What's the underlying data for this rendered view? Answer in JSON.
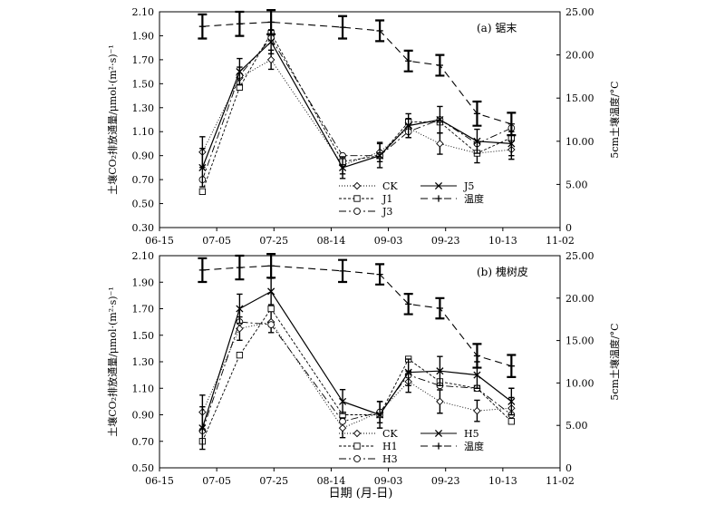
{
  "figure": {
    "ylabel_left": "土壤CO₂排放通量/μmol·(m²·s)⁻¹",
    "ylabel_right": "5cm土壤温度/°C",
    "xlabel": "日期 (月-日)"
  },
  "x_ticks": [
    "06-15",
    "07-05",
    "07-25",
    "08-14",
    "09-03",
    "09-23",
    "10-13",
    "11-02"
  ],
  "x_tick_days": [
    0,
    20,
    40,
    60,
    80,
    100,
    120,
    140
  ],
  "left_ticks": [
    "0.30",
    "0.50",
    "0.70",
    "0.90",
    "1.10",
    "1.30",
    "1.50",
    "1.70",
    "1.90",
    "2.10"
  ],
  "right_ticks": [
    "0",
    "5.00",
    "10.00",
    "15.00",
    "20.00",
    "25.00"
  ],
  "chart_data": [
    {
      "type": "line",
      "title": "(a) 锯末",
      "x": [
        "06-30",
        "07-13",
        "07-24",
        "08-18",
        "08-31",
        "09-10",
        "09-21",
        "10-04",
        "10-16"
      ],
      "x_days": [
        15,
        28,
        39,
        64,
        77,
        87,
        98,
        111,
        123
      ],
      "ylim": [
        0.3,
        2.1
      ],
      "y2lim": [
        0,
        25
      ],
      "series": [
        {
          "name": "CK",
          "axis": "left",
          "marker": "diamond",
          "dash": "1,2",
          "values": [
            0.93,
            1.55,
            1.7,
            0.82,
            0.93,
            1.13,
            1.0,
            0.92,
            0.95
          ]
        },
        {
          "name": "J1",
          "axis": "left",
          "marker": "square",
          "dash": "3,2",
          "values": [
            0.6,
            1.47,
            1.92,
            0.85,
            0.9,
            1.18,
            1.18,
            0.92,
            1.05
          ]
        },
        {
          "name": "J3",
          "axis": "left",
          "marker": "circle",
          "dash": "8,3,2,3",
          "values": [
            0.7,
            1.57,
            1.88,
            0.9,
            0.9,
            1.1,
            1.2,
            1.0,
            1.13
          ]
        },
        {
          "name": "J5",
          "axis": "left",
          "marker": "x",
          "dash": "",
          "values": [
            0.8,
            1.6,
            1.85,
            0.8,
            0.9,
            1.15,
            1.2,
            1.02,
            1.0
          ]
        },
        {
          "name": "温度",
          "axis": "right",
          "marker": "plus",
          "dash": "8,5",
          "values": [
            23.3,
            23.6,
            23.8,
            23.2,
            22.8,
            19.3,
            18.8,
            13.2,
            12.0
          ]
        }
      ]
    },
    {
      "type": "line",
      "title": "(b) 槐树皮",
      "x": [
        "06-30",
        "07-13",
        "07-24",
        "08-18",
        "08-31",
        "09-10",
        "09-21",
        "10-04",
        "10-16"
      ],
      "x_days": [
        15,
        28,
        39,
        64,
        77,
        87,
        98,
        111,
        123
      ],
      "ylim": [
        0.5,
        2.1
      ],
      "y2lim": [
        0,
        25
      ],
      "series": [
        {
          "name": "CK",
          "axis": "left",
          "marker": "diamond",
          "dash": "1,2",
          "values": [
            0.92,
            1.55,
            1.6,
            0.8,
            0.92,
            1.15,
            1.0,
            0.93,
            0.95
          ]
        },
        {
          "name": "H1",
          "axis": "left",
          "marker": "square",
          "dash": "3,2",
          "values": [
            0.7,
            1.35,
            1.7,
            0.9,
            0.9,
            1.32,
            1.15,
            1.1,
            0.85
          ]
        },
        {
          "name": "H3",
          "axis": "left",
          "marker": "circle",
          "dash": "8,3,2,3",
          "values": [
            0.78,
            1.6,
            1.58,
            0.85,
            0.92,
            1.2,
            1.12,
            1.1,
            0.9
          ]
        },
        {
          "name": "H5",
          "axis": "left",
          "marker": "x",
          "dash": "",
          "values": [
            0.8,
            1.7,
            1.83,
            1.0,
            0.9,
            1.22,
            1.23,
            1.2,
            1.0
          ]
        },
        {
          "name": "温度",
          "axis": "right",
          "marker": "plus",
          "dash": "8,5",
          "values": [
            23.3,
            23.6,
            23.8,
            23.2,
            22.8,
            19.3,
            18.8,
            13.2,
            12.0
          ]
        }
      ]
    }
  ]
}
